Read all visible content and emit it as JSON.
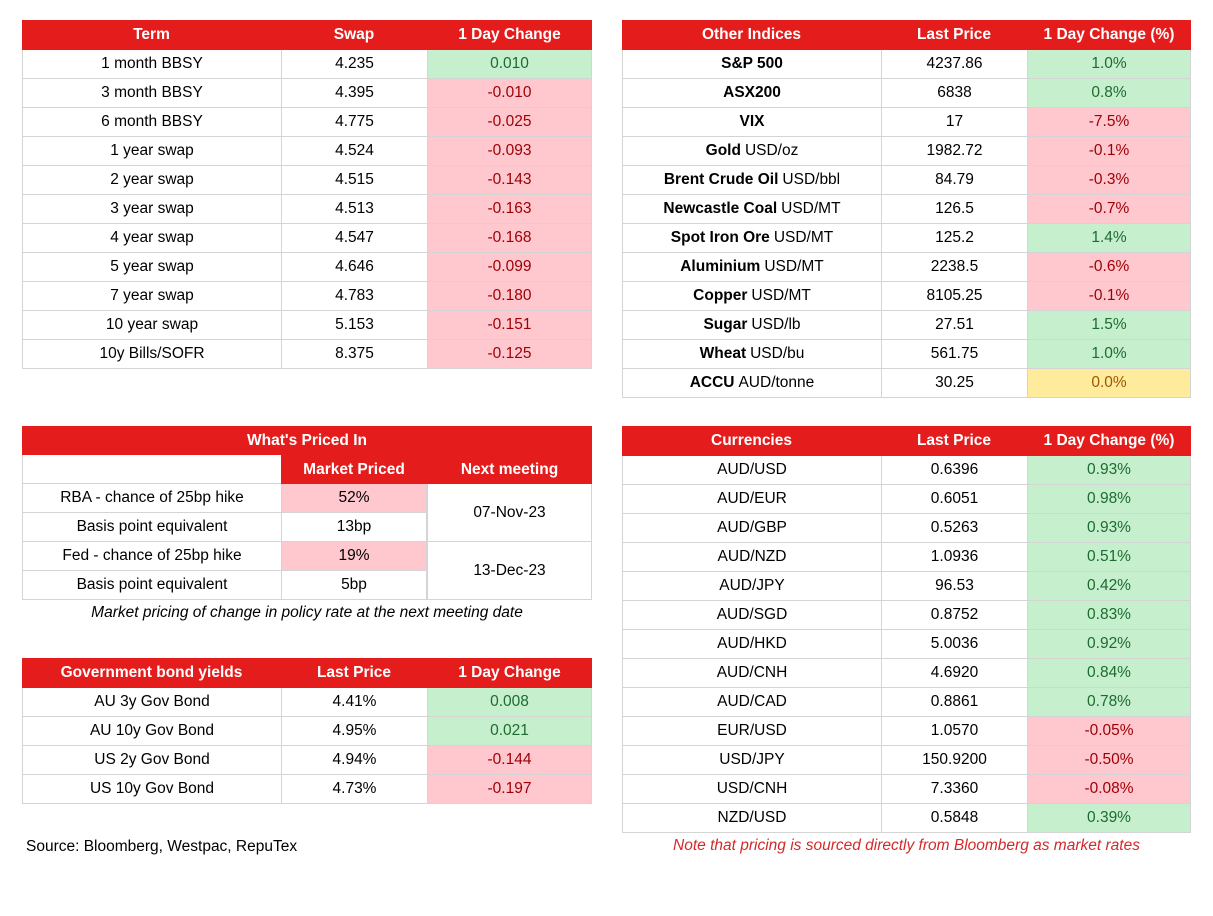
{
  "swaps": {
    "headers": [
      "Term",
      "Swap",
      "1 Day Change"
    ],
    "rows": [
      {
        "term": "1 month BBSY",
        "swap": "4.235",
        "change": "0.010",
        "dir": "pos"
      },
      {
        "term": "3 month BBSY",
        "swap": "4.395",
        "change": "-0.010",
        "dir": "neg"
      },
      {
        "term": "6 month BBSY",
        "swap": "4.775",
        "change": "-0.025",
        "dir": "neg"
      },
      {
        "term": "1 year swap",
        "swap": "4.524",
        "change": "-0.093",
        "dir": "neg"
      },
      {
        "term": "2 year swap",
        "swap": "4.515",
        "change": "-0.143",
        "dir": "neg"
      },
      {
        "term": "3 year swap",
        "swap": "4.513",
        "change": "-0.163",
        "dir": "neg"
      },
      {
        "term": "4 year swap",
        "swap": "4.547",
        "change": "-0.168",
        "dir": "neg"
      },
      {
        "term": "5 year swap",
        "swap": "4.646",
        "change": "-0.099",
        "dir": "neg"
      },
      {
        "term": "7 year swap",
        "swap": "4.783",
        "change": "-0.180",
        "dir": "neg"
      },
      {
        "term": "10 year swap",
        "swap": "5.153",
        "change": "-0.151",
        "dir": "neg"
      },
      {
        "term": "10y Bills/SOFR",
        "swap": "8.375",
        "change": "-0.125",
        "dir": "neg"
      }
    ]
  },
  "indices": {
    "headers": [
      "Other Indices",
      "Last Price",
      "1 Day Change (%)"
    ],
    "rows": [
      {
        "name": "S&P 500",
        "unit": "",
        "price": "4237.86",
        "change": "1.0%",
        "dir": "pos"
      },
      {
        "name": "ASX200",
        "unit": "",
        "price": "6838",
        "change": "0.8%",
        "dir": "pos"
      },
      {
        "name": "VIX",
        "unit": "",
        "price": "17",
        "change": "-7.5%",
        "dir": "neg"
      },
      {
        "name": "Gold",
        "unit": "USD/oz",
        "price": "1982.72",
        "change": "-0.1%",
        "dir": "neg"
      },
      {
        "name": "Brent Crude Oil",
        "unit": "USD/bbl",
        "price": "84.79",
        "change": "-0.3%",
        "dir": "neg"
      },
      {
        "name": "Newcastle Coal",
        "unit": "USD/MT",
        "price": "126.5",
        "change": "-0.7%",
        "dir": "neg"
      },
      {
        "name": "Spot Iron Ore",
        "unit": "USD/MT",
        "price": "125.2",
        "change": "1.4%",
        "dir": "pos"
      },
      {
        "name": "Aluminium",
        "unit": "USD/MT",
        "price": "2238.5",
        "change": "-0.6%",
        "dir": "neg"
      },
      {
        "name": "Copper",
        "unit": "USD/MT",
        "price": "8105.25",
        "change": "-0.1%",
        "dir": "neg"
      },
      {
        "name": "Sugar",
        "unit": "USD/lb",
        "price": "27.51",
        "change": "1.5%",
        "dir": "pos"
      },
      {
        "name": "Wheat",
        "unit": "USD/bu",
        "price": "561.75",
        "change": "1.0%",
        "dir": "pos"
      },
      {
        "name": "ACCU",
        "unit": "AUD/tonne",
        "price": "30.25",
        "change": "0.0%",
        "dir": "neu"
      }
    ]
  },
  "priced": {
    "title": "What's Priced In",
    "col_market": "Market Priced",
    "col_next": "Next meeting",
    "rows": [
      {
        "label": "RBA - chance of 25bp hike",
        "value": "52%"
      },
      {
        "label": "Basis point equivalent",
        "value": "13bp"
      },
      {
        "label": "Fed - chance of 25bp hike",
        "value": "19%"
      },
      {
        "label": "Basis point equivalent",
        "value": "5bp"
      }
    ],
    "meeting_rba": "07-Nov-23",
    "meeting_fed": "13-Dec-23",
    "note": "Market pricing of change in policy rate at the next meeting date"
  },
  "bonds": {
    "headers": [
      "Government bond yields",
      "Last Price",
      "1 Day Change"
    ],
    "rows": [
      {
        "name": "AU 3y Gov Bond",
        "price": "4.41%",
        "change": "0.008",
        "dir": "pos"
      },
      {
        "name": "AU 10y Gov Bond",
        "price": "4.95%",
        "change": "0.021",
        "dir": "pos"
      },
      {
        "name": "US 2y Gov Bond",
        "price": "4.94%",
        "change": "-0.144",
        "dir": "neg"
      },
      {
        "name": "US 10y Gov Bond",
        "price": "4.73%",
        "change": "-0.197",
        "dir": "neg"
      }
    ]
  },
  "currencies": {
    "headers": [
      "Currencies",
      "Last Price",
      "1 Day Change (%)"
    ],
    "rows": [
      {
        "pair": "AUD/USD",
        "price": "0.6396",
        "change": "0.93%",
        "dir": "pos"
      },
      {
        "pair": "AUD/EUR",
        "price": "0.6051",
        "change": "0.98%",
        "dir": "pos"
      },
      {
        "pair": "AUD/GBP",
        "price": "0.5263",
        "change": "0.93%",
        "dir": "pos"
      },
      {
        "pair": "AUD/NZD",
        "price": "1.0936",
        "change": "0.51%",
        "dir": "pos"
      },
      {
        "pair": "AUD/JPY",
        "price": "96.53",
        "change": "0.42%",
        "dir": "pos"
      },
      {
        "pair": "AUD/SGD",
        "price": "0.8752",
        "change": "0.83%",
        "dir": "pos"
      },
      {
        "pair": "AUD/HKD",
        "price": "5.0036",
        "change": "0.92%",
        "dir": "pos"
      },
      {
        "pair": "AUD/CNH",
        "price": "4.6920",
        "change": "0.84%",
        "dir": "pos"
      },
      {
        "pair": "AUD/CAD",
        "price": "0.8861",
        "change": "0.78%",
        "dir": "pos"
      },
      {
        "pair": "EUR/USD",
        "price": "1.0570",
        "change": "-0.05%",
        "dir": "neg"
      },
      {
        "pair": "USD/JPY",
        "price": "150.9200",
        "change": "-0.50%",
        "dir": "neg"
      },
      {
        "pair": "USD/CNH",
        "price": "7.3360",
        "change": "-0.08%",
        "dir": "neg"
      },
      {
        "pair": "NZD/USD",
        "price": "0.5848",
        "change": "0.39%",
        "dir": "pos"
      }
    ]
  },
  "source": "Source: Bloomberg, Westpac, RepuTex",
  "pricing_note": "Note that pricing is sourced directly from Bloomberg as market rates"
}
